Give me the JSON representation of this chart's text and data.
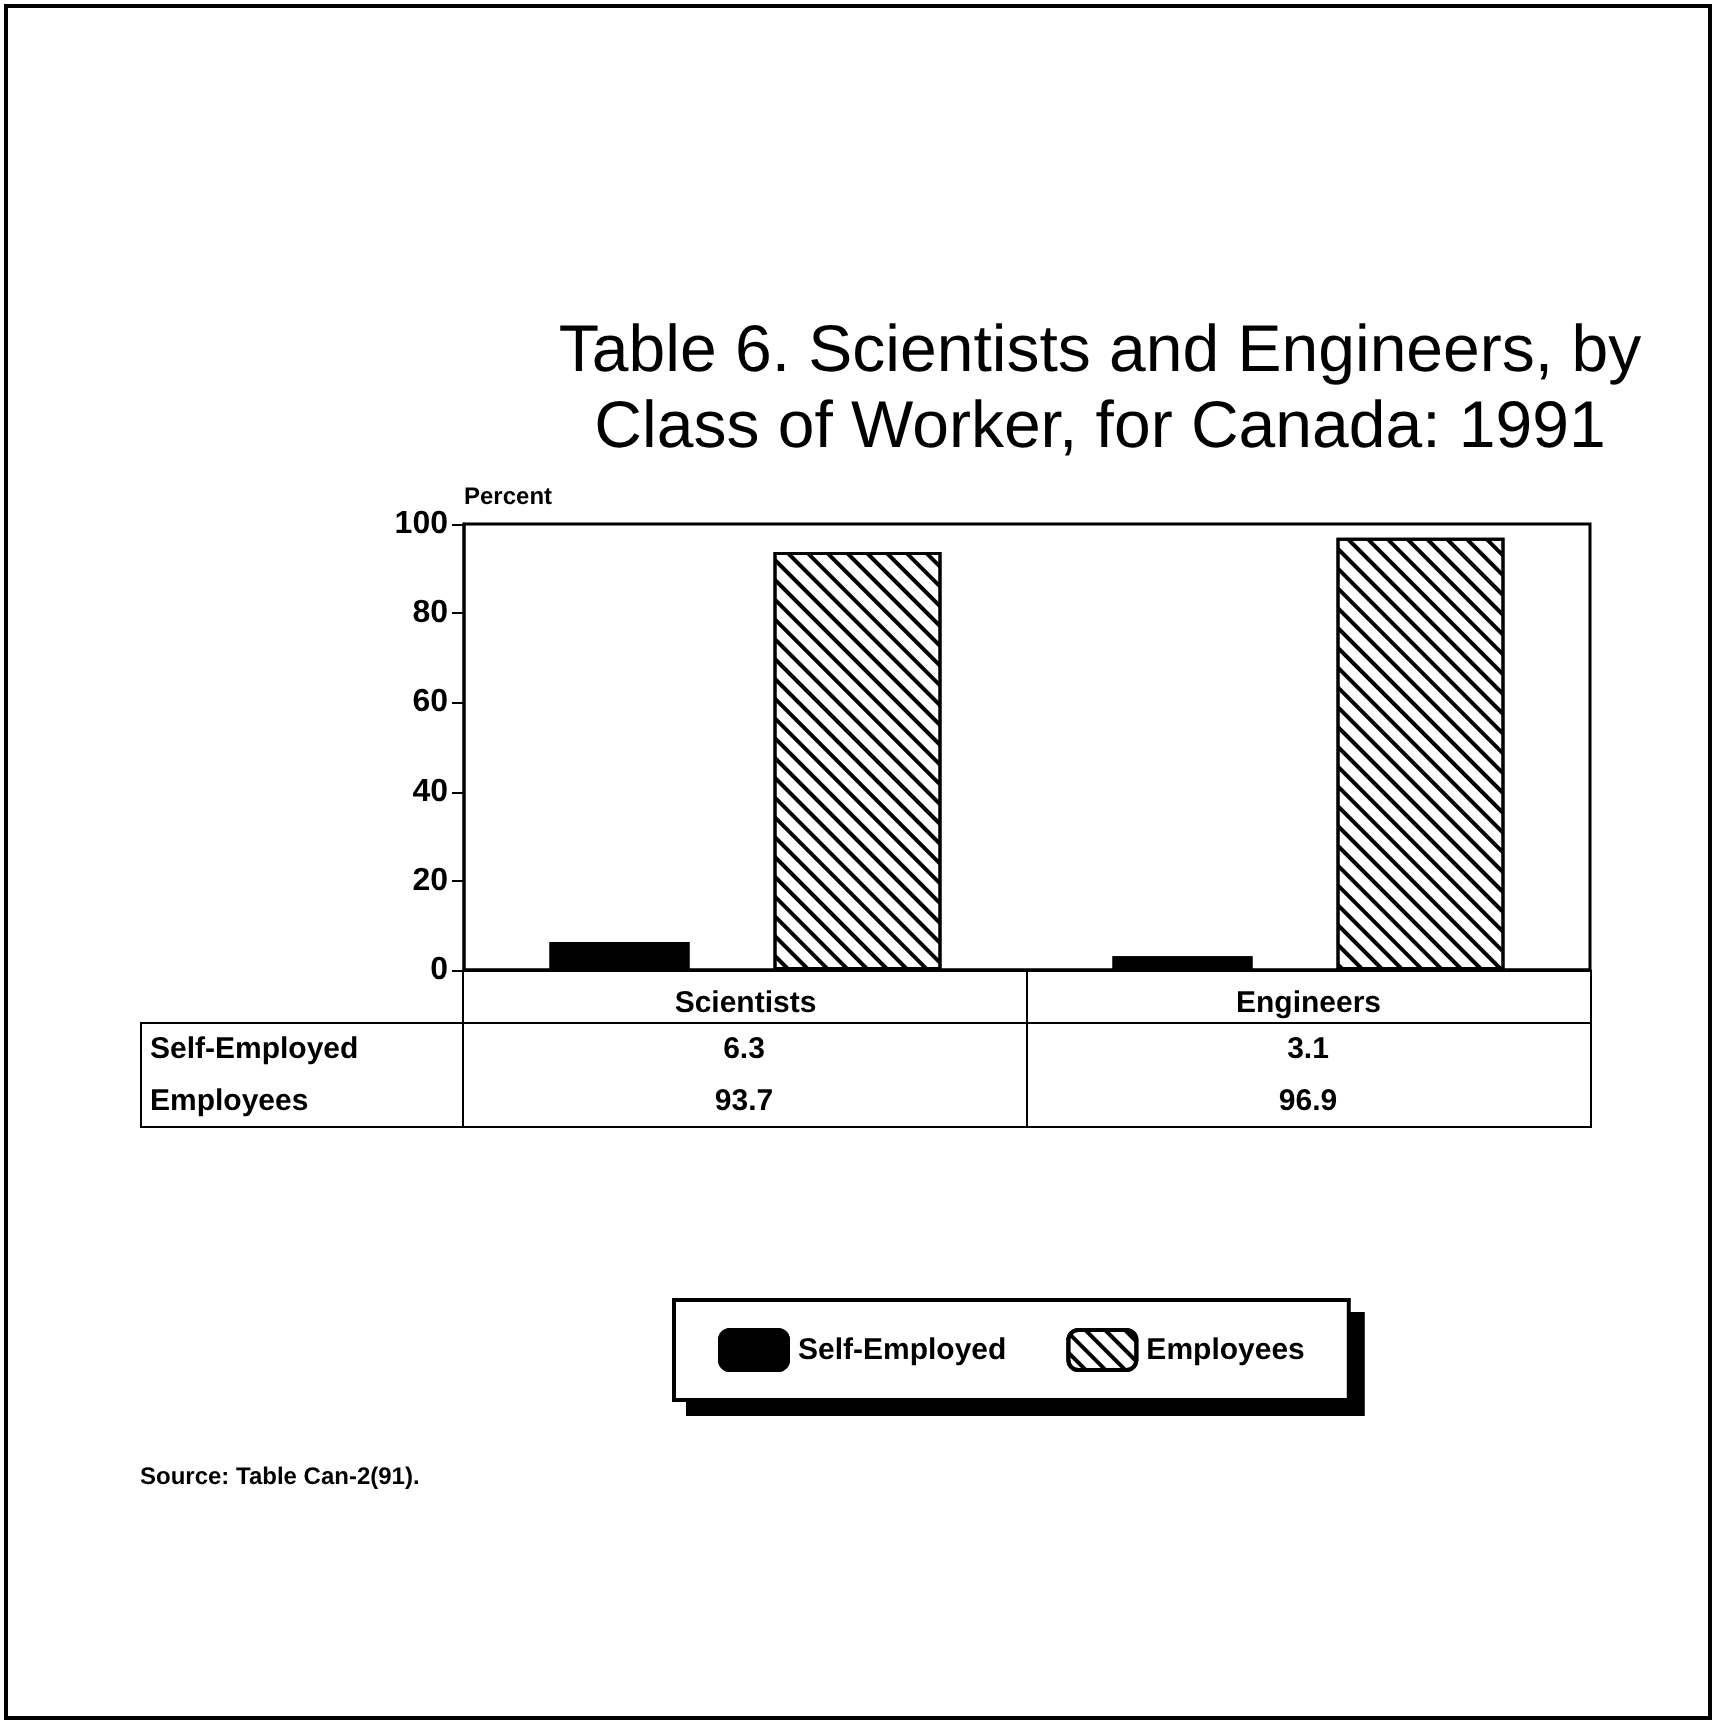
{
  "chart_data": {
    "type": "bar",
    "title": "Table 6. Scientists and Engineers, by\nClass of Worker, for Canada: 1991",
    "ylabel": "Percent",
    "categories": [
      "Scientists",
      "Engineers"
    ],
    "series": [
      {
        "name": "Self-Employed",
        "color": "#000000",
        "values": [
          6.3,
          3.1
        ]
      },
      {
        "name": "Employees",
        "color": "#ffffff",
        "values": [
          93.7,
          96.9
        ]
      }
    ],
    "ylim": [
      0,
      100
    ],
    "yticks": [
      0,
      20,
      40,
      60,
      80,
      100
    ],
    "grid": false,
    "legend": "bottom",
    "data_labels": true,
    "annotations": [
      "Source: Table Can-2(91)."
    ]
  }
}
